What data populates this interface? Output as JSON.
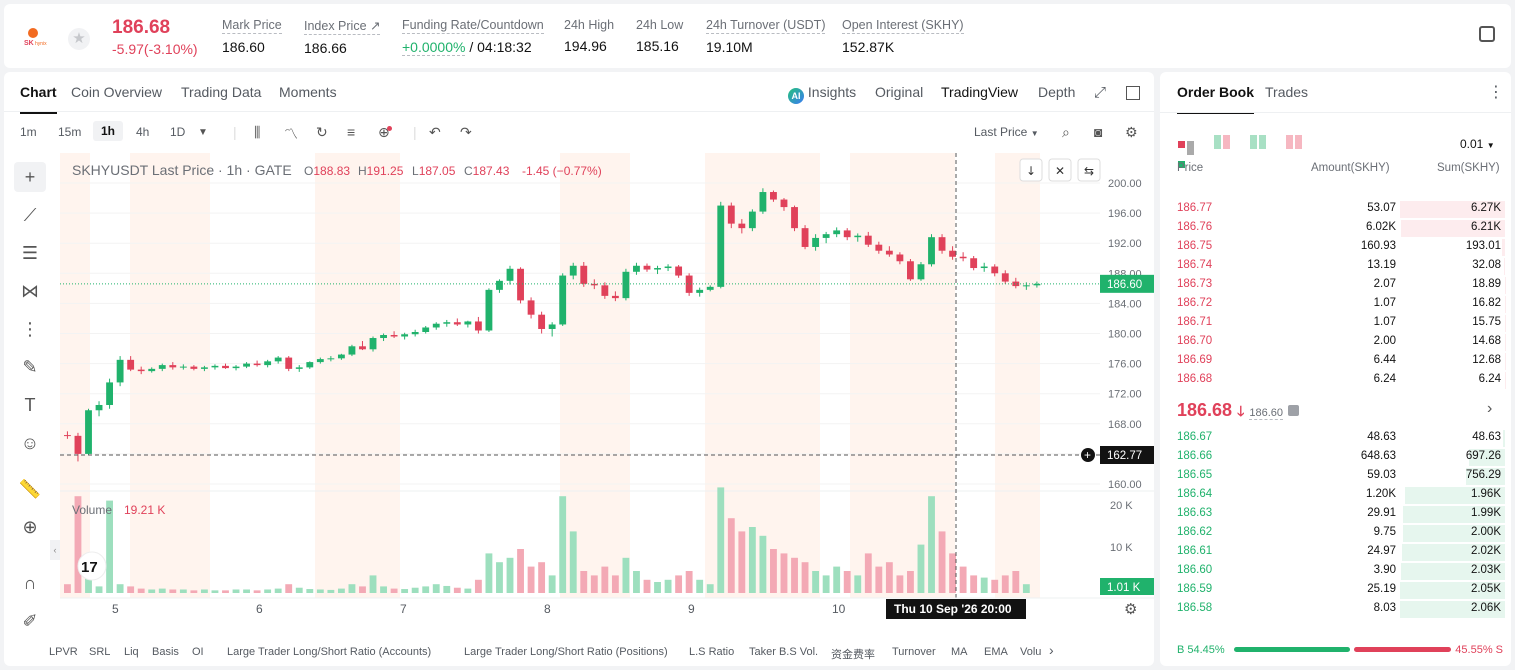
{
  "header": {
    "price": "186.68",
    "change": "-5.97(-3.10%)",
    "stats": [
      {
        "label": "Mark Price",
        "value": "186.60",
        "x": 218
      },
      {
        "label": "Index Price ↗",
        "value": "186.66",
        "x": 300
      },
      {
        "label": "Funding Rate/Countdown",
        "value_a": "+0.0000%",
        "value_b": " / 04:18:32",
        "x": 398
      },
      {
        "label": "24h High",
        "value": "194.96",
        "x": 560
      },
      {
        "label": "24h Low",
        "value": "185.16",
        "x": 632
      },
      {
        "label": "24h Turnover (USDT)",
        "value": "19.10M",
        "x": 702
      },
      {
        "label": "Open Interest (SKHY)",
        "value": "152.87K",
        "x": 838
      }
    ]
  },
  "chart_tabs": [
    "Chart",
    "Coin Overview",
    "Trading Data",
    "Moments"
  ],
  "view_tabs": {
    "insights": "Insights",
    "original": "Original",
    "tradingview": "TradingView",
    "depth": "Depth"
  },
  "timeframes": [
    "1m",
    "15m",
    "1h",
    "4h",
    "1D"
  ],
  "active_timeframe": "1h",
  "price_type": "Last Price",
  "legend": {
    "title": "SKHYUSDT Last Price · 1h · GATE",
    "o": "188.83",
    "h": "191.25",
    "l": "187.05",
    "c": "187.43",
    "chg": "-1.45 (−0.77%)"
  },
  "volume_label": "Volume",
  "volume_value": "19.21 K",
  "crosshair_price": "162.77",
  "current_price_tag": "186.60",
  "volume_tag": "1.01 K",
  "crosshair_time": "Thu 10 Sep '26   20:00",
  "bottom_indicators": [
    "LPVR",
    "SRL",
    "Liq",
    "Basis",
    "OI",
    "Large Trader Long/Short Ratio (Accounts)",
    "Large Trader Long/Short Ratio (Positions)",
    "L.S Ratio",
    "Taker B.S Vol.",
    "资金费率",
    "Turnover",
    "MA",
    "EMA",
    "Volu"
  ],
  "chart_data": {
    "type": "candlestick",
    "y_ticks": [
      "200.00",
      "196.00",
      "192.00",
      "188.00",
      "184.00",
      "180.00",
      "176.00",
      "172.00",
      "168.00",
      "164.00",
      "160.00"
    ],
    "x_ticks": [
      "5",
      "6",
      "7",
      "8",
      "9",
      "10"
    ],
    "volume_ticks": [
      "20 K",
      "10 K"
    ],
    "ylim": [
      160,
      200
    ],
    "candles_approx": [
      [
        166.5,
        167,
        166,
        166.4
      ],
      [
        166.4,
        166.8,
        163,
        164
      ],
      [
        164,
        170,
        163.8,
        169.8
      ],
      [
        169.8,
        171,
        169,
        170.5
      ],
      [
        170.5,
        174,
        170,
        173.5
      ],
      [
        173.5,
        177,
        173,
        176.5
      ],
      [
        176.5,
        177,
        175,
        175.2
      ],
      [
        175.2,
        175.6,
        174.6,
        175
      ],
      [
        175,
        175.5,
        174.8,
        175.3
      ],
      [
        175.3,
        176,
        175,
        175.8
      ],
      [
        175.8,
        176.2,
        175.2,
        175.5
      ],
      [
        175.5,
        175.9,
        175.2,
        175.6
      ],
      [
        175.6,
        175.8,
        175.1,
        175.3
      ],
      [
        175.3,
        175.7,
        175,
        175.5
      ],
      [
        175.5,
        175.9,
        175.2,
        175.7
      ],
      [
        175.7,
        176,
        175.3,
        175.4
      ],
      [
        175.4,
        175.8,
        175.1,
        175.6
      ],
      [
        175.6,
        176.2,
        175.4,
        176
      ],
      [
        176,
        176.4,
        175.6,
        175.8
      ],
      [
        175.8,
        176.5,
        175.5,
        176.3
      ],
      [
        176.3,
        177,
        176,
        176.8
      ],
      [
        176.8,
        177,
        175,
        175.3
      ],
      [
        175.3,
        175.8,
        174.9,
        175.5
      ],
      [
        175.5,
        176.3,
        175.3,
        176.2
      ],
      [
        176.2,
        176.8,
        176,
        176.6
      ],
      [
        176.6,
        177,
        176.3,
        176.7
      ],
      [
        176.7,
        177.3,
        176.5,
        177.2
      ],
      [
        177.2,
        178.5,
        177,
        178.3
      ],
      [
        178.3,
        179,
        177.8,
        177.9
      ],
      [
        177.9,
        179.6,
        177.6,
        179.4
      ],
      [
        179.4,
        180,
        179,
        179.8
      ],
      [
        179.8,
        180.3,
        179.4,
        179.6
      ],
      [
        179.6,
        180.1,
        179.2,
        179.9
      ],
      [
        179.9,
        180.5,
        179.6,
        180.2
      ],
      [
        180.2,
        181,
        180,
        180.8
      ],
      [
        180.8,
        181.5,
        180.5,
        181.3
      ],
      [
        181.3,
        181.8,
        180.9,
        181.5
      ],
      [
        181.5,
        182,
        181,
        181.2
      ],
      [
        181.2,
        181.7,
        180.8,
        181.6
      ],
      [
        181.6,
        182.2,
        180,
        180.4
      ],
      [
        180.4,
        186,
        180.2,
        185.8
      ],
      [
        185.8,
        187.2,
        185.4,
        187
      ],
      [
        187,
        189,
        186.5,
        188.6
      ],
      [
        188.6,
        188.8,
        184,
        184.4
      ],
      [
        184.4,
        184.8,
        182,
        182.5
      ],
      [
        182.5,
        182.9,
        180,
        180.6
      ],
      [
        180.6,
        181.5,
        179.6,
        181.2
      ],
      [
        181.2,
        188,
        181,
        187.7
      ],
      [
        187.7,
        189.4,
        187.2,
        189
      ],
      [
        189,
        189.5,
        186.2,
        186.6
      ],
      [
        186.6,
        187.2,
        185.9,
        186.4
      ],
      [
        186.4,
        186.8,
        184.6,
        185
      ],
      [
        185,
        185.6,
        184.3,
        184.7
      ],
      [
        184.7,
        188.6,
        184.4,
        188.2
      ],
      [
        188.2,
        189.4,
        187.8,
        189
      ],
      [
        189,
        189.3,
        188.2,
        188.5
      ],
      [
        188.5,
        189,
        187.9,
        188.7
      ],
      [
        188.7,
        189.2,
        188.3,
        188.9
      ],
      [
        188.9,
        189.1,
        187.4,
        187.7
      ],
      [
        187.7,
        188,
        185,
        185.4
      ],
      [
        185.4,
        186.1,
        184.9,
        185.8
      ],
      [
        185.8,
        186.4,
        185.6,
        186.2
      ],
      [
        186.2,
        197.5,
        186,
        197
      ],
      [
        197,
        197.4,
        194,
        194.6
      ],
      [
        194.6,
        195.2,
        193.3,
        194
      ],
      [
        194,
        196.5,
        193.6,
        196.2
      ],
      [
        196.2,
        199.3,
        195.9,
        198.8
      ],
      [
        198.8,
        199,
        197.5,
        197.8
      ],
      [
        197.8,
        198,
        196.3,
        196.8
      ],
      [
        196.8,
        197,
        193.6,
        194
      ],
      [
        194,
        194.4,
        191.2,
        191.5
      ],
      [
        191.5,
        193.2,
        191,
        192.7
      ],
      [
        192.7,
        193.5,
        192,
        193.2
      ],
      [
        193.2,
        194.1,
        192.8,
        193.7
      ],
      [
        193.7,
        194,
        192.4,
        192.8
      ],
      [
        192.8,
        193.3,
        192.2,
        193
      ],
      [
        193,
        193.5,
        191.5,
        191.8
      ],
      [
        191.8,
        192.2,
        190.6,
        191
      ],
      [
        191,
        191.6,
        190.2,
        190.5
      ],
      [
        190.5,
        190.8,
        189.2,
        189.6
      ],
      [
        189.6,
        189.9,
        187,
        187.2
      ],
      [
        187.2,
        189.5,
        187,
        189.2
      ],
      [
        189.2,
        193.2,
        188.9,
        192.8
      ],
      [
        192.8,
        193.2,
        190.6,
        191
      ],
      [
        191,
        191.6,
        189.8,
        190.2
      ],
      [
        190.2,
        190.8,
        189.6,
        190
      ],
      [
        190,
        190.3,
        188.4,
        188.7
      ],
      [
        188.7,
        189.4,
        188.2,
        188.9
      ],
      [
        188.9,
        189.2,
        187.6,
        188
      ],
      [
        188,
        188.4,
        186.6,
        186.9
      ],
      [
        186.9,
        187.4,
        186,
        186.3
      ],
      [
        186.3,
        186.8,
        185.8,
        186.4
      ],
      [
        186.4,
        186.9,
        186.1,
        186.6
      ]
    ],
    "volumes_approx": [
      2,
      22,
      5,
      1.5,
      21,
      2,
      1.5,
      1,
      0.8,
      1,
      0.8,
      0.8,
      0.6,
      0.8,
      0.6,
      0.6,
      0.8,
      0.8,
      0.6,
      0.8,
      1,
      2,
      1.2,
      0.9,
      0.8,
      0.7,
      1,
      2,
      1.5,
      4,
      1.5,
      1,
      0.9,
      1.2,
      1.5,
      2,
      1.6,
      1.2,
      1,
      3,
      9,
      7,
      8,
      10,
      6,
      7,
      4,
      22,
      14,
      5,
      4,
      6,
      4,
      8,
      5,
      3,
      2.5,
      3,
      4,
      5,
      3,
      2,
      24,
      17,
      14,
      15,
      13,
      10,
      9,
      8,
      7,
      5,
      4,
      6,
      5,
      4,
      9,
      6,
      7,
      4,
      5,
      11,
      22,
      14,
      9,
      6,
      4,
      3.5,
      3,
      4,
      5,
      2
    ]
  },
  "orderbook": {
    "tabs": [
      "Order Book",
      "Trades"
    ],
    "precision": "0.01",
    "headers": {
      "price": "Price",
      "amount": "Amount(SKHY)",
      "sum": "Sum(SKHY)"
    },
    "asks": [
      {
        "p": "186.77",
        "a": "53.07",
        "s": "6.27K",
        "w": 1.0
      },
      {
        "p": "186.76",
        "a": "6.02K",
        "s": "6.21K",
        "w": 0.99
      },
      {
        "p": "186.75",
        "a": "160.93",
        "s": "193.01",
        "w": 0.031
      },
      {
        "p": "186.74",
        "a": "13.19",
        "s": "32.08",
        "w": 0.006
      },
      {
        "p": "186.73",
        "a": "2.07",
        "s": "18.89",
        "w": 0.004
      },
      {
        "p": "186.72",
        "a": "1.07",
        "s": "16.82",
        "w": 0.003
      },
      {
        "p": "186.71",
        "a": "1.07",
        "s": "15.75",
        "w": 0.003
      },
      {
        "p": "186.70",
        "a": "2.00",
        "s": "14.68",
        "w": 0.003
      },
      {
        "p": "186.69",
        "a": "6.44",
        "s": "12.68",
        "w": 0.002
      },
      {
        "p": "186.68",
        "a": "6.24",
        "s": "6.24",
        "w": 0.001
      }
    ],
    "last_price": "186.68",
    "mark_price": "186.60",
    "bids": [
      {
        "p": "186.67",
        "a": "48.63",
        "s": "48.63",
        "w": 0.02
      },
      {
        "p": "186.66",
        "a": "648.63",
        "s": "697.26",
        "w": 0.34
      },
      {
        "p": "186.65",
        "a": "59.03",
        "s": "756.29",
        "w": 0.37
      },
      {
        "p": "186.64",
        "a": "1.20K",
        "s": "1.96K",
        "w": 0.95
      },
      {
        "p": "186.63",
        "a": "29.91",
        "s": "1.99K",
        "w": 0.97
      },
      {
        "p": "186.62",
        "a": "9.75",
        "s": "2.00K",
        "w": 0.975
      },
      {
        "p": "186.61",
        "a": "24.97",
        "s": "2.02K",
        "w": 0.985
      },
      {
        "p": "186.60",
        "a": "3.90",
        "s": "2.03K",
        "w": 0.99
      },
      {
        "p": "186.59",
        "a": "25.19",
        "s": "2.05K",
        "w": 1.0
      },
      {
        "p": "186.58",
        "a": "8.03",
        "s": "2.06K",
        "w": 1.0
      }
    ],
    "buy_ratio": "B 54.45%",
    "sell_ratio": "45.55% S",
    "buy_fraction": 0.5445
  },
  "colors": {
    "up": "#20b26c",
    "down": "#e0415a",
    "session": "#fff4ee"
  }
}
